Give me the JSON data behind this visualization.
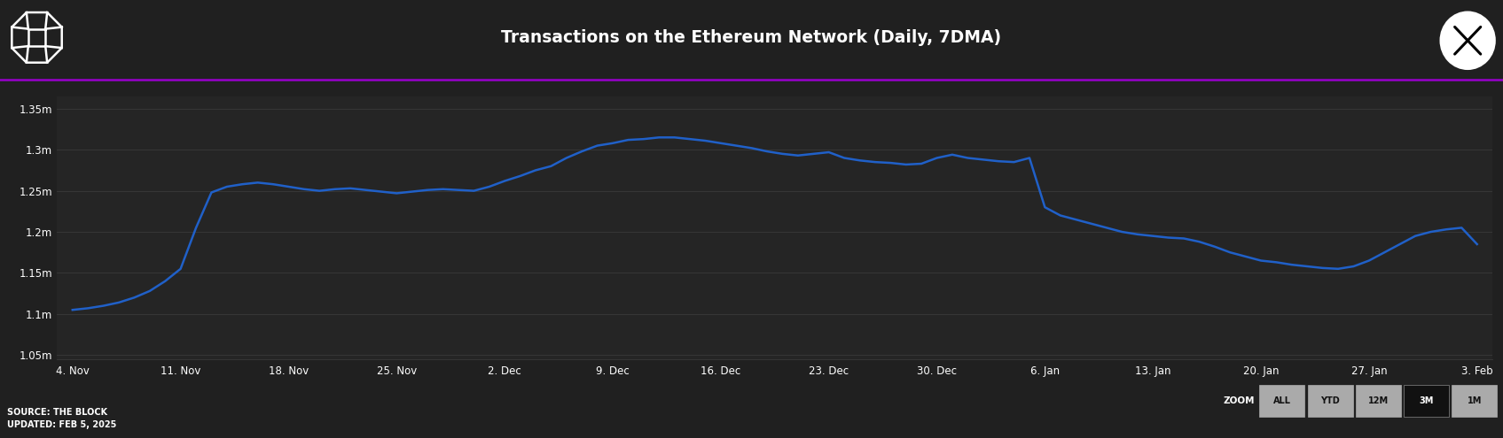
{
  "title": "Transactions on the Ethereum Network (Daily, 7DMA)",
  "background_color": "#202020",
  "header_color": "#1a1a1a",
  "plot_bg_color": "#252525",
  "line_color": "#2060c8",
  "line_width": 1.8,
  "grid_color": "#3a3a3a",
  "text_color": "#ffffff",
  "accent_line_color": "#9900cc",
  "source_text": "SOURCE: THE BLOCK\nUPDATED: FEB 5, 2025",
  "zoom_label": "ZOOM",
  "zoom_buttons": [
    "ALL",
    "YTD",
    "12M",
    "3M",
    "1M"
  ],
  "active_zoom": "3M",
  "ytick_labels": [
    "1.05m",
    "1.1m",
    "1.15m",
    "1.2m",
    "1.25m",
    "1.3m",
    "1.35m"
  ],
  "ytick_values": [
    1050000,
    1100000,
    1150000,
    1200000,
    1250000,
    1300000,
    1350000
  ],
  "xtick_labels": [
    "4. Nov",
    "11. Nov",
    "18. Nov",
    "25. Nov",
    "2. Dec",
    "9. Dec",
    "16. Dec",
    "23. Dec",
    "30. Dec",
    "6. Jan",
    "13. Jan",
    "20. Jan",
    "27. Jan",
    "3. Feb"
  ],
  "x_values": [
    0,
    7,
    14,
    21,
    28,
    35,
    42,
    49,
    56,
    63,
    70,
    77,
    84,
    91
  ],
  "ylim": [
    1045000,
    1365000
  ],
  "xlim": [
    -1,
    92
  ],
  "line_x": [
    0,
    1,
    2,
    3,
    4,
    5,
    6,
    7,
    8,
    9,
    10,
    11,
    12,
    13,
    14,
    15,
    16,
    17,
    18,
    19,
    20,
    21,
    22,
    23,
    24,
    25,
    26,
    27,
    28,
    29,
    30,
    31,
    32,
    33,
    34,
    35,
    36,
    37,
    38,
    39,
    40,
    41,
    42,
    43,
    44,
    45,
    46,
    47,
    48,
    49,
    50,
    51,
    52,
    53,
    54,
    55,
    56,
    57,
    58,
    59,
    60,
    61,
    62,
    63,
    64,
    65,
    66,
    67,
    68,
    69,
    70,
    71,
    72,
    73,
    74,
    75,
    76,
    77,
    78,
    79,
    80,
    81,
    82,
    83,
    84,
    85,
    86,
    87,
    88,
    89,
    90,
    91
  ],
  "line_y": [
    1105,
    1107,
    1110,
    1114,
    1120,
    1128,
    1140,
    1155,
    1205,
    1248,
    1255,
    1258,
    1260,
    1258,
    1255,
    1252,
    1250,
    1252,
    1253,
    1251,
    1249,
    1247,
    1249,
    1251,
    1252,
    1251,
    1250,
    1255,
    1262,
    1268,
    1275,
    1280,
    1290,
    1298,
    1305,
    1308,
    1312,
    1313,
    1315,
    1315,
    1313,
    1311,
    1308,
    1305,
    1302,
    1298,
    1295,
    1293,
    1295,
    1297,
    1290,
    1287,
    1285,
    1284,
    1282,
    1283,
    1290,
    1294,
    1290,
    1288,
    1286,
    1285,
    1290,
    1230,
    1220,
    1215,
    1210,
    1205,
    1200,
    1197,
    1195,
    1193,
    1192,
    1188,
    1182,
    1175,
    1170,
    1165,
    1163,
    1160,
    1158,
    1156,
    1155,
    1158,
    1165,
    1175,
    1185,
    1195,
    1200,
    1203,
    1205,
    1185
  ]
}
